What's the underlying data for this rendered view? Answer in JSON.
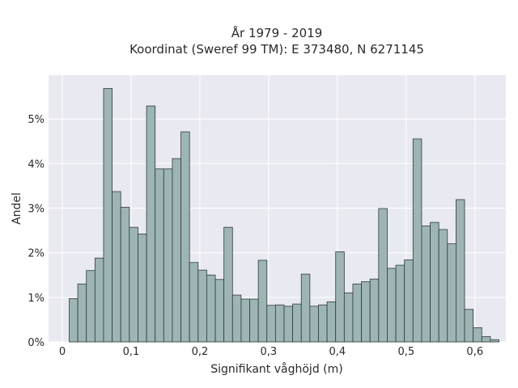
{
  "chart_data": {
    "type": "bar",
    "title_lines": [
      "År 1979 - 2019",
      "Koordinat (Sweref 99 TM): E 373480, N 6271145"
    ],
    "xlabel": "Signifikant våghöjd (m)",
    "ylabel": "Andel",
    "x_ticks": [
      {
        "value": 0,
        "label": "0"
      },
      {
        "value": 0.1,
        "label": "0,1"
      },
      {
        "value": 0.2,
        "label": "0,2"
      },
      {
        "value": 0.3,
        "label": "0,3"
      },
      {
        "value": 0.4,
        "label": "0,4"
      },
      {
        "value": 0.5,
        "label": "0,5"
      },
      {
        "value": 0.6,
        "label": "0,6"
      }
    ],
    "y_ticks": [
      {
        "value": 0,
        "label": "0%"
      },
      {
        "value": 1,
        "label": "1%"
      },
      {
        "value": 2,
        "label": "2%"
      },
      {
        "value": 3,
        "label": "3%"
      },
      {
        "value": 4,
        "label": "4%"
      },
      {
        "value": 5,
        "label": "5%"
      }
    ],
    "xlim": [
      -0.02,
      0.645
    ],
    "ylim": [
      0,
      5.98
    ],
    "bin_width": 0.0125,
    "bin_start": 0.01,
    "values": [
      0.97,
      1.3,
      1.6,
      1.88,
      5.68,
      3.37,
      3.02,
      2.57,
      2.42,
      5.29,
      3.88,
      3.88,
      4.11,
      4.71,
      1.78,
      1.61,
      1.5,
      1.4,
      2.57,
      1.05,
      0.96,
      0.96,
      1.83,
      0.82,
      0.83,
      0.8,
      0.85,
      1.52,
      0.8,
      0.83,
      0.9,
      2.02,
      1.1,
      1.3,
      1.35,
      1.41,
      2.99,
      1.65,
      1.72,
      1.84,
      4.55,
      2.6,
      2.68,
      2.52,
      2.2,
      3.19,
      0.73,
      0.32,
      0.12,
      0.05
    ],
    "grid": true,
    "colors": {
      "bar_fill": "#9db5b4",
      "bar_stroke": "#2f3b3b",
      "plot_bg": "#e9e9f1",
      "grid": "#ffffff"
    }
  }
}
